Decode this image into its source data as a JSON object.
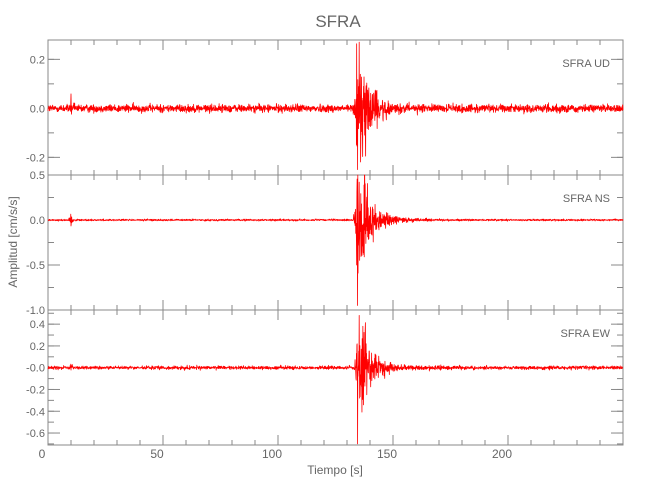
{
  "chart_data": {
    "type": "line",
    "title": "SFRA",
    "xlabel": "Tiempo [s]",
    "ylabel": "Amplitud [cm/s/s]",
    "xlim": [
      0,
      250
    ],
    "x_ticks": [
      0,
      50,
      100,
      150,
      200
    ],
    "x_tick_labels": [
      "0",
      "50",
      "100",
      "150",
      "200"
    ],
    "x_minor_step": 10,
    "grid": false,
    "color": "#ff0000",
    "panels": [
      {
        "label": "SFRA   UD",
        "ylim": [
          -0.272,
          0.279
        ],
        "y_ticks": [
          0.2,
          0.0,
          -0.2
        ],
        "y_tick_labels": [
          "0.2",
          "0.0",
          "-0.2"
        ],
        "y_minor_step": 0.1,
        "noise_level": 0.008,
        "events": [
          {
            "time": 10,
            "peak": 0.07
          },
          {
            "time": 134,
            "peak": 0.27,
            "min": -0.25
          }
        ]
      },
      {
        "label": "SFRA   NS",
        "ylim": [
          -1.0,
          0.5
        ],
        "y_ticks": [
          0.5,
          0.0,
          -0.5,
          -1.0
        ],
        "y_tick_labels": [
          "0.5",
          "0.0",
          "-0.5",
          "-1.0"
        ],
        "y_minor_step": 0.25,
        "noise_level": 0.005,
        "events": [
          {
            "time": 10,
            "peak": 0.1
          },
          {
            "time": 134,
            "peak": 0.42,
            "min": -0.95
          }
        ]
      },
      {
        "label": "SFRA   EW",
        "ylim": [
          -0.71,
          0.53
        ],
        "y_ticks": [
          0.4,
          0.2,
          0.0,
          -0.2,
          -0.4,
          -0.6
        ],
        "y_tick_labels": [
          "0.4",
          "0.2",
          "-0.0",
          "-0.2",
          "-0.4",
          "-0.6"
        ],
        "y_minor_step": 0.1,
        "noise_level": 0.008,
        "events": [
          {
            "time": 10,
            "peak": 0.05
          },
          {
            "time": 134,
            "peak": 0.48,
            "min": -0.7
          }
        ]
      }
    ]
  }
}
